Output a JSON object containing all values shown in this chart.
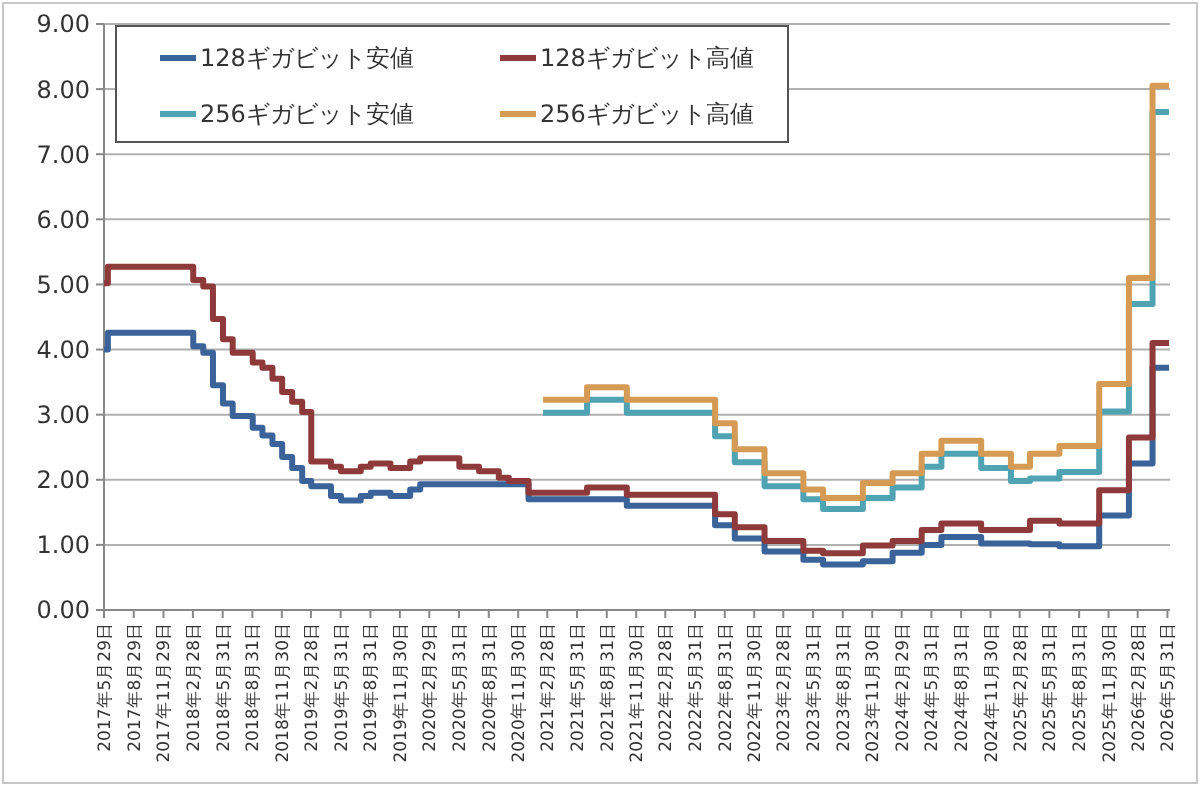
{
  "chart_data": {
    "type": "step",
    "grid": "y",
    "legend": "top left",
    "xlim": [
      "2017-05-29",
      "2026-06-08"
    ],
    "xticks": [
      {
        "value": "2017-05-29",
        "label": "2017年5月29日"
      },
      {
        "value": "2017-08-29",
        "label": "2017年8月29日"
      },
      {
        "value": "2017-11-29",
        "label": "2017年11月29日"
      },
      {
        "value": "2018-02-28",
        "label": "2018年2月28日"
      },
      {
        "value": "2018-05-31",
        "label": "2018年5月31日"
      },
      {
        "value": "2018-08-31",
        "label": "2018年8月31日"
      },
      {
        "value": "2018-11-30",
        "label": "2018年11月30日"
      },
      {
        "value": "2019-02-28",
        "label": "2019年2月28日"
      },
      {
        "value": "2019-05-31",
        "label": "2019年5月31日"
      },
      {
        "value": "2019-08-31",
        "label": "2019年8月31日"
      },
      {
        "value": "2019-11-30",
        "label": "2019年11月30日"
      },
      {
        "value": "2020-02-29",
        "label": "2020年2月29日"
      },
      {
        "value": "2020-05-31",
        "label": "2020年5月31日"
      },
      {
        "value": "2020-08-31",
        "label": "2020年8月31日"
      },
      {
        "value": "2020-11-30",
        "label": "2020年11月30日"
      },
      {
        "value": "2021-02-28",
        "label": "2021年2月28日"
      },
      {
        "value": "2021-05-31",
        "label": "2021年5月31日"
      },
      {
        "value": "2021-08-31",
        "label": "2021年8月31日"
      },
      {
        "value": "2021-11-30",
        "label": "2021年11月30日"
      },
      {
        "value": "2022-02-28",
        "label": "2022年2月28日"
      },
      {
        "value": "2022-05-31",
        "label": "2022年5月31日"
      },
      {
        "value": "2022-08-31",
        "label": "2022年8月31日"
      },
      {
        "value": "2022-11-30",
        "label": "2022年11月30日"
      },
      {
        "value": "2023-02-28",
        "label": "2023年2月28日"
      },
      {
        "value": "2023-05-31",
        "label": "2023年5月31日"
      },
      {
        "value": "2023-08-31",
        "label": "2023年8月31日"
      },
      {
        "value": "2023-11-30",
        "label": "2023年11月30日"
      },
      {
        "value": "2024-02-29",
        "label": "2024年2月29日"
      },
      {
        "value": "2024-05-31",
        "label": "2024年5月31日"
      },
      {
        "value": "2024-08-31",
        "label": "2024年8月31日"
      },
      {
        "value": "2024-11-30",
        "label": "2024年11月30日"
      },
      {
        "value": "2025-02-28",
        "label": "2025年2月28日"
      },
      {
        "value": "2025-05-31",
        "label": "2025年5月31日"
      },
      {
        "value": "2025-08-31",
        "label": "2025年8月31日"
      },
      {
        "value": "2025-11-30",
        "label": "2025年11月30日"
      },
      {
        "value": "2026-02-28",
        "label": "2026年2月28日"
      },
      {
        "value": "2026-05-31",
        "label": "2026年5月31日"
      }
    ],
    "ylim": [
      0,
      9
    ],
    "yticks": [
      {
        "value": 0,
        "label": "0.00"
      },
      {
        "value": 1,
        "label": "1.00"
      },
      {
        "value": 2,
        "label": "2.00"
      },
      {
        "value": 3,
        "label": "3.00"
      },
      {
        "value": 4,
        "label": "4.00"
      },
      {
        "value": 5,
        "label": "5.00"
      },
      {
        "value": 6,
        "label": "6.00"
      },
      {
        "value": 7,
        "label": "7.00"
      },
      {
        "value": 8,
        "label": "8.00"
      },
      {
        "value": 9,
        "label": "9.00"
      }
    ],
    "series": [
      {
        "name": "128ギガビット安値",
        "color": "#3a6399",
        "x": [
          "2017-05-29",
          "2017-06-10",
          "2018-03-01",
          "2018-04-01",
          "2018-05-01",
          "2018-06-01",
          "2018-07-01",
          "2018-09-01",
          "2018-10-01",
          "2018-11-01",
          "2018-12-01",
          "2019-01-01",
          "2019-02-01",
          "2019-03-01",
          "2019-05-01",
          "2019-06-01",
          "2019-08-01",
          "2019-09-01",
          "2019-11-01",
          "2020-01-01",
          "2020-02-01",
          "2021-01-01",
          "2021-11-01",
          "2022-08-01",
          "2022-10-01",
          "2023-01-01",
          "2023-05-01",
          "2023-07-01",
          "2023-11-01",
          "2024-02-01",
          "2024-05-01",
          "2024-07-01",
          "2024-11-01",
          "2025-04-01",
          "2025-07-01",
          "2025-11-01",
          "2026-02-01",
          "2026-04-15",
          "2026-06-05"
        ],
        "values": [
          4.0,
          4.26,
          4.05,
          3.95,
          3.45,
          3.17,
          2.98,
          2.8,
          2.68,
          2.55,
          2.35,
          2.18,
          1.98,
          1.9,
          1.75,
          1.68,
          1.75,
          1.8,
          1.75,
          1.85,
          1.93,
          1.7,
          1.6,
          1.3,
          1.1,
          0.9,
          0.77,
          0.7,
          0.75,
          0.88,
          1.0,
          1.12,
          1.02,
          1.01,
          0.98,
          1.45,
          2.25,
          3.72,
          3.72
        ]
      },
      {
        "name": "128ギガビット高値",
        "color": "#8e3a3a",
        "x": [
          "2017-05-29",
          "2017-06-10",
          "2018-03-01",
          "2018-04-01",
          "2018-05-01",
          "2018-06-01",
          "2018-07-01",
          "2018-09-01",
          "2018-10-01",
          "2018-11-01",
          "2018-12-01",
          "2019-01-01",
          "2019-02-01",
          "2019-03-01",
          "2019-05-01",
          "2019-06-01",
          "2019-08-01",
          "2019-09-01",
          "2019-11-01",
          "2020-01-01",
          "2020-02-01",
          "2020-06-01",
          "2020-08-01",
          "2020-10-01",
          "2020-11-01",
          "2021-01-01",
          "2021-07-01",
          "2021-11-01",
          "2022-08-01",
          "2022-10-01",
          "2023-01-01",
          "2023-05-01",
          "2023-07-01",
          "2023-11-01",
          "2024-02-01",
          "2024-05-01",
          "2024-07-01",
          "2024-11-01",
          "2025-04-01",
          "2025-07-01",
          "2025-11-01",
          "2026-02-01",
          "2026-04-15",
          "2026-06-05"
        ],
        "values": [
          5.02,
          5.27,
          5.07,
          4.97,
          4.47,
          4.16,
          3.95,
          3.8,
          3.72,
          3.55,
          3.35,
          3.2,
          3.04,
          2.28,
          2.2,
          2.13,
          2.2,
          2.25,
          2.18,
          2.28,
          2.33,
          2.2,
          2.13,
          2.03,
          1.98,
          1.8,
          1.88,
          1.77,
          1.47,
          1.27,
          1.06,
          0.91,
          0.87,
          0.99,
          1.06,
          1.23,
          1.33,
          1.23,
          1.37,
          1.33,
          1.84,
          2.65,
          4.1,
          4.1
        ]
      },
      {
        "name": "256ギガビット安値",
        "color": "#4fa3b3",
        "x": [
          "2021-02-15",
          "2021-07-01",
          "2021-11-01",
          "2022-08-01",
          "2022-10-01",
          "2023-01-01",
          "2023-05-01",
          "2023-07-01",
          "2023-11-01",
          "2024-02-01",
          "2024-05-01",
          "2024-07-01",
          "2024-11-01",
          "2025-02-01",
          "2025-04-01",
          "2025-07-01",
          "2025-11-01",
          "2026-02-01",
          "2026-04-15",
          "2026-06-05"
        ],
        "values": [
          3.03,
          3.23,
          3.03,
          2.67,
          2.27,
          1.9,
          1.7,
          1.55,
          1.72,
          1.88,
          2.2,
          2.4,
          2.18,
          1.98,
          2.02,
          2.12,
          3.05,
          4.7,
          7.65,
          7.65
        ]
      },
      {
        "name": "256ギガビット高値",
        "color": "#d59b55",
        "x": [
          "2021-02-15",
          "2021-07-01",
          "2021-11-01",
          "2022-08-01",
          "2022-10-01",
          "2023-01-01",
          "2023-05-01",
          "2023-07-01",
          "2023-11-01",
          "2024-02-01",
          "2024-05-01",
          "2024-07-01",
          "2024-11-01",
          "2025-02-01",
          "2025-04-01",
          "2025-07-01",
          "2025-11-01",
          "2026-02-01",
          "2026-04-15",
          "2026-06-05"
        ],
        "values": [
          3.23,
          3.42,
          3.23,
          2.87,
          2.47,
          2.1,
          1.85,
          1.72,
          1.95,
          2.1,
          2.4,
          2.6,
          2.4,
          2.2,
          2.4,
          2.52,
          3.47,
          5.1,
          8.05,
          8.05
        ]
      }
    ]
  }
}
